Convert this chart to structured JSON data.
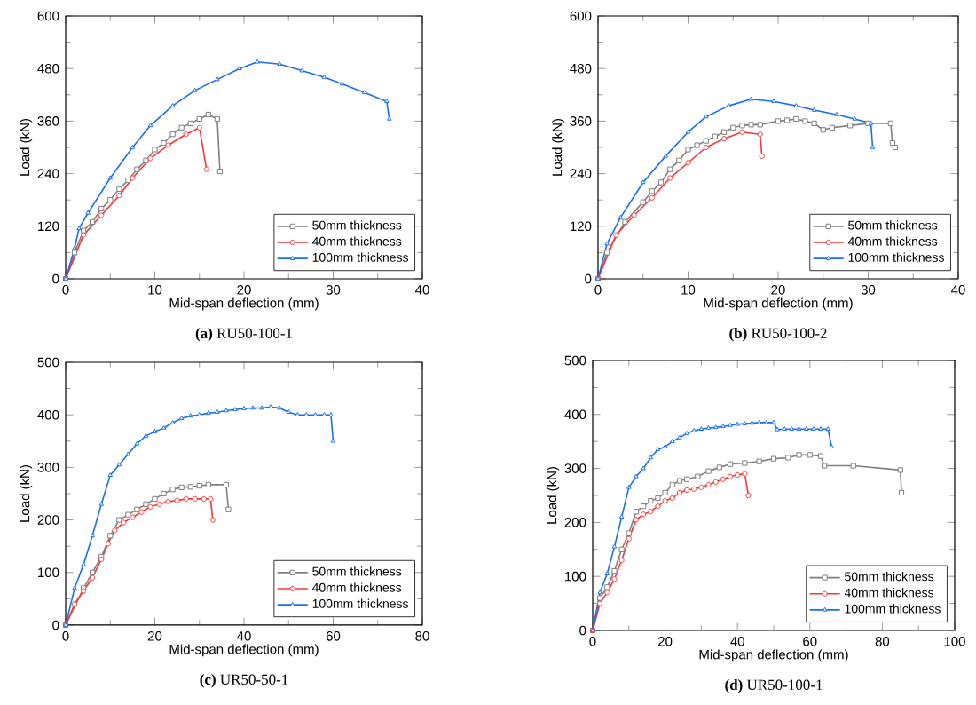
{
  "chart_data": [
    {
      "type": "line",
      "title": "**(a)** RU50-100-1",
      "xlabel": "Mid-span deflection (mm)",
      "ylabel": "Load (kN)",
      "xlim": [
        0,
        40
      ],
      "ylim": [
        0,
        600
      ],
      "xticks": [
        0,
        10,
        20,
        30,
        40
      ],
      "yticks": [
        0,
        120,
        240,
        360,
        480,
        600
      ],
      "legend": "bottom right",
      "grid": false,
      "series": [
        {
          "name": "50mm thickness",
          "color": "#808080",
          "marker": "square",
          "x": [
            0,
            1,
            2,
            3,
            4,
            5,
            6,
            7,
            8,
            9,
            10,
            11,
            12,
            13,
            14,
            15,
            16,
            17,
            17.3
          ],
          "values": [
            0,
            60,
            110,
            130,
            160,
            180,
            205,
            225,
            250,
            270,
            295,
            310,
            330,
            345,
            355,
            365,
            375,
            365,
            245
          ]
        },
        {
          "name": "40mm thickness",
          "color": "#ff3333",
          "marker": "circle",
          "x": [
            0,
            2,
            4,
            6,
            7.5,
            9.5,
            11.5,
            13.5,
            15,
            15.8
          ],
          "values": [
            0,
            100,
            145,
            190,
            230,
            275,
            305,
            330,
            345,
            250
          ]
        },
        {
          "name": "100mm thickness",
          "color": "#1a6ff0",
          "marker": "triangle",
          "x": [
            0,
            1,
            1.5,
            2.5,
            5,
            7.5,
            9.5,
            12,
            14.5,
            17,
            19.5,
            21.5,
            24,
            26.5,
            29,
            31,
            33.5,
            36,
            36.3
          ],
          "values": [
            0,
            70,
            115,
            150,
            230,
            300,
            350,
            395,
            430,
            455,
            480,
            495,
            490,
            475,
            460,
            445,
            425,
            405,
            365
          ]
        }
      ]
    },
    {
      "type": "line",
      "title": "**(b)** RU50-100-2",
      "xlabel": "Mid-span deflection (mm)",
      "ylabel": "Load (kN)",
      "xlim": [
        0,
        40
      ],
      "ylim": [
        0,
        600
      ],
      "xticks": [
        0,
        10,
        20,
        30,
        40
      ],
      "yticks": [
        0,
        120,
        240,
        360,
        480,
        600
      ],
      "legend": "bottom right",
      "grid": false,
      "series": [
        {
          "name": "50mm thickness",
          "color": "#808080",
          "marker": "square",
          "x": [
            0,
            1,
            3,
            5,
            6,
            7,
            8,
            9,
            10,
            11,
            12,
            13,
            14,
            15,
            16,
            17,
            18,
            20,
            21,
            22,
            23,
            24,
            25,
            26,
            28,
            30,
            32.5,
            32.7,
            33
          ],
          "values": [
            0,
            60,
            130,
            175,
            200,
            220,
            250,
            270,
            295,
            305,
            315,
            325,
            335,
            345,
            350,
            352,
            352,
            360,
            362,
            365,
            360,
            355,
            340,
            345,
            350,
            355,
            355,
            310,
            300
          ]
        },
        {
          "name": "40mm thickness",
          "color": "#ff3333",
          "marker": "circle",
          "x": [
            0,
            2,
            4,
            6,
            8,
            10,
            12,
            14,
            16,
            18,
            18.2
          ],
          "values": [
            0,
            100,
            145,
            185,
            230,
            265,
            300,
            320,
            335,
            330,
            280
          ]
        },
        {
          "name": "100mm thickness",
          "color": "#1a6ff0",
          "marker": "triangle",
          "x": [
            0,
            1,
            2.5,
            5,
            7.5,
            10,
            12,
            14.5,
            17,
            19.5,
            22,
            24,
            26.5,
            28.5,
            30.3,
            30.5
          ],
          "values": [
            0,
            80,
            140,
            220,
            280,
            335,
            370,
            395,
            410,
            405,
            395,
            385,
            375,
            365,
            355,
            300
          ]
        }
      ]
    },
    {
      "type": "line",
      "title": "**(c)** UR50-50-1",
      "xlabel": "Mid-span deflection (mm)",
      "ylabel": "Load (kN)",
      "xlim": [
        0,
        80
      ],
      "ylim": [
        0,
        500
      ],
      "xticks": [
        0,
        20,
        40,
        60,
        80
      ],
      "yticks": [
        0,
        100,
        200,
        300,
        400,
        500
      ],
      "legend": "bottom right",
      "grid": false,
      "series": [
        {
          "name": "50mm thickness",
          "color": "#808080",
          "marker": "square",
          "x": [
            0,
            4,
            6,
            8,
            10,
            12,
            14,
            16,
            18,
            20,
            22,
            24,
            26,
            28,
            30,
            32,
            36,
            36.5
          ],
          "values": [
            0,
            70,
            100,
            130,
            170,
            200,
            210,
            220,
            230,
            240,
            250,
            258,
            262,
            263,
            265,
            267,
            267,
            220
          ]
        },
        {
          "name": "40mm thickness",
          "color": "#ff3333",
          "marker": "circle",
          "x": [
            0,
            2,
            4,
            6,
            8,
            9.5,
            11,
            13,
            15,
            17,
            19,
            21,
            23,
            25,
            27,
            29,
            31,
            32.5,
            33
          ],
          "values": [
            0,
            40,
            65,
            90,
            125,
            155,
            180,
            195,
            205,
            215,
            225,
            230,
            235,
            237,
            240,
            240,
            240,
            240,
            200
          ]
        },
        {
          "name": "100mm thickness",
          "color": "#1a6ff0",
          "marker": "triangle",
          "x": [
            0,
            2,
            4,
            6,
            8,
            10,
            12,
            14,
            16,
            18,
            20,
            22,
            24,
            26,
            28,
            30,
            32,
            34,
            36,
            38,
            40,
            42,
            44,
            46,
            48,
            50,
            52,
            54,
            56,
            58,
            59.5,
            60
          ],
          "values": [
            0,
            70,
            115,
            170,
            230,
            285,
            305,
            325,
            345,
            360,
            368,
            375,
            385,
            393,
            398,
            400,
            403,
            405,
            408,
            410,
            412,
            413,
            413,
            415,
            413,
            405,
            400,
            400,
            400,
            400,
            400,
            350
          ]
        }
      ]
    },
    {
      "type": "line",
      "title": "**(d)** UR50-100-1",
      "xlabel": "Mid-span deflection (mm)",
      "ylabel": "Load (kN)",
      "xlim": [
        0,
        100
      ],
      "ylim": [
        0,
        500
      ],
      "xticks": [
        0,
        20,
        40,
        60,
        80,
        100
      ],
      "yticks": [
        0,
        100,
        200,
        300,
        400,
        500
      ],
      "legend": "bottom right",
      "grid": false,
      "series": [
        {
          "name": "50mm thickness",
          "color": "#808080",
          "marker": "square",
          "x": [
            0,
            2,
            4,
            6,
            8,
            10,
            12,
            14,
            16,
            18,
            20,
            22,
            24,
            26,
            29,
            32,
            35,
            38,
            42,
            46,
            50,
            54,
            57,
            60,
            63,
            64,
            72,
            85,
            85.3
          ],
          "values": [
            0,
            60,
            80,
            110,
            150,
            180,
            220,
            230,
            240,
            245,
            255,
            270,
            277,
            280,
            285,
            295,
            302,
            308,
            310,
            313,
            318,
            320,
            325,
            325,
            323,
            305,
            305,
            297,
            255
          ]
        },
        {
          "name": "40mm thickness",
          "color": "#ff3333",
          "marker": "circle",
          "x": [
            0,
            2,
            4,
            6,
            8,
            10,
            12,
            14,
            16,
            18,
            20,
            22,
            24,
            26,
            28,
            30,
            32,
            34,
            36,
            38,
            40,
            42,
            43
          ],
          "values": [
            0,
            50,
            70,
            95,
            130,
            170,
            205,
            215,
            220,
            230,
            240,
            245,
            255,
            260,
            262,
            265,
            270,
            275,
            280,
            285,
            288,
            290,
            250
          ]
        },
        {
          "name": "100mm thickness",
          "color": "#1a6ff0",
          "marker": "triangle",
          "x": [
            0,
            2,
            4,
            6,
            8,
            10,
            12,
            14,
            16,
            18,
            20,
            22,
            24,
            26,
            28,
            30,
            32,
            34,
            36,
            38,
            40,
            42,
            44,
            46,
            48,
            50,
            51,
            53,
            55,
            57,
            59,
            61,
            63,
            65,
            66
          ],
          "values": [
            0,
            70,
            105,
            155,
            210,
            265,
            285,
            300,
            320,
            335,
            340,
            350,
            357,
            365,
            370,
            373,
            375,
            376,
            378,
            380,
            382,
            383,
            384,
            385,
            385,
            385,
            372,
            373,
            373,
            373,
            373,
            373,
            373,
            373,
            340
          ]
        }
      ]
    }
  ]
}
